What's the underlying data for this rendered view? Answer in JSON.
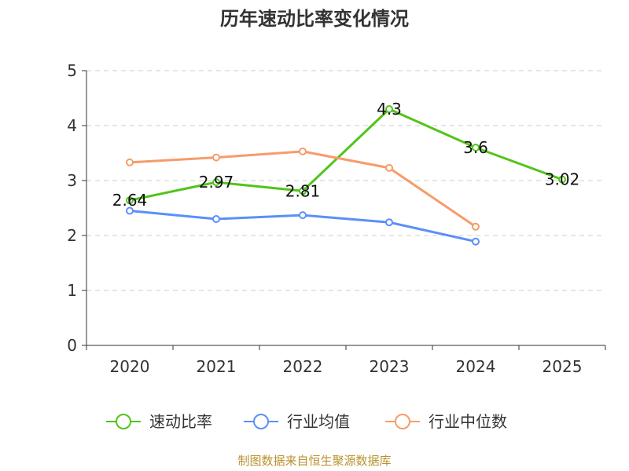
{
  "chart_data": {
    "type": "line",
    "title": "历年速动比率变化情况",
    "categories": [
      "2020",
      "2021",
      "2022",
      "2023",
      "2024",
      "2025"
    ],
    "ylim": [
      0,
      5
    ],
    "yticks": [
      0,
      1,
      2,
      3,
      4,
      5
    ],
    "grid": true,
    "legend_position": "bottom",
    "series": [
      {
        "name": "速动比率",
        "color": "#52c41a",
        "values": [
          2.64,
          2.97,
          2.81,
          4.3,
          3.6,
          3.02
        ],
        "labels": [
          "2.64",
          "2.97",
          "2.81",
          "4.3",
          "3.6",
          "3.02"
        ]
      },
      {
        "name": "行业均值",
        "color": "#5b8ff9",
        "values": [
          2.45,
          2.3,
          2.37,
          2.24,
          1.89,
          null
        ]
      },
      {
        "name": "行业中位数",
        "color": "#f69c6a",
        "values": [
          3.33,
          3.42,
          3.53,
          3.23,
          2.16,
          null
        ]
      }
    ]
  },
  "footer": {
    "source": "制图数据来自恒生聚源数据库"
  }
}
